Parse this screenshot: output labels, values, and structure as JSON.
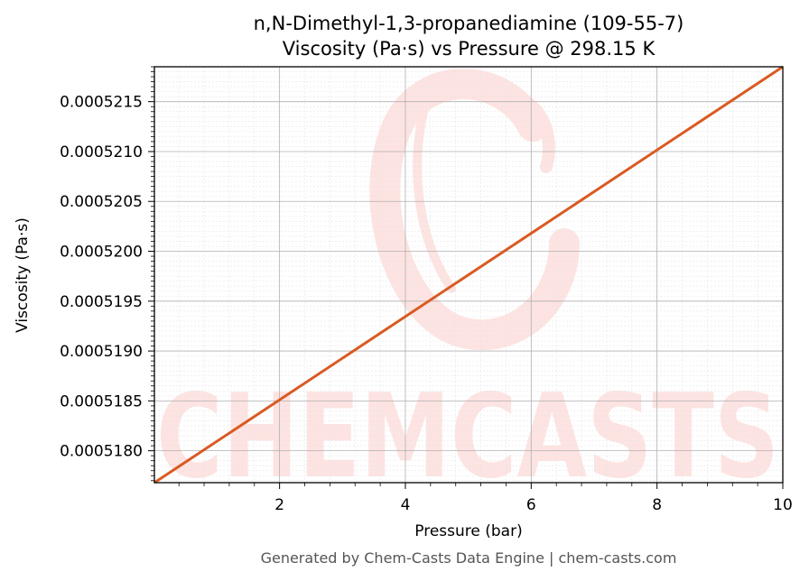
{
  "chart_data": {
    "type": "line",
    "title": "n,N-Dimethyl-1,3-propanediamine (109-55-7)",
    "subtitle": "Viscosity (Pa·s) vs Pressure @ 298.15 K",
    "xlabel": "Pressure (bar)",
    "ylabel": "Viscosity (Pa·s)",
    "xlim": [
      0.01,
      10
    ],
    "ylim": [
      0.00051768,
      0.00052185
    ],
    "x_ticks": [
      2,
      4,
      6,
      8,
      10
    ],
    "x_tick_labels": [
      "2",
      "4",
      "6",
      "8",
      "10"
    ],
    "y_ticks": [
      0.000518,
      0.0005185,
      0.000519,
      0.0005195,
      0.00052,
      0.0005205,
      0.000521,
      0.0005215
    ],
    "y_tick_labels": [
      "0.0005180",
      "0.0005185",
      "0.0005190",
      "0.0005195",
      "0.0005200",
      "0.0005205",
      "0.0005210",
      "0.0005215"
    ],
    "grid": true,
    "series": [
      {
        "x": [
          0.01,
          10
        ],
        "y": [
          0.00051768,
          0.00052185
        ],
        "color": "#d95a22"
      }
    ]
  },
  "watermark": {
    "text": "CHEMCASTS",
    "color": "#fde3e1"
  },
  "footer": "Generated by Chem-Casts Data Engine | chem-casts.com"
}
